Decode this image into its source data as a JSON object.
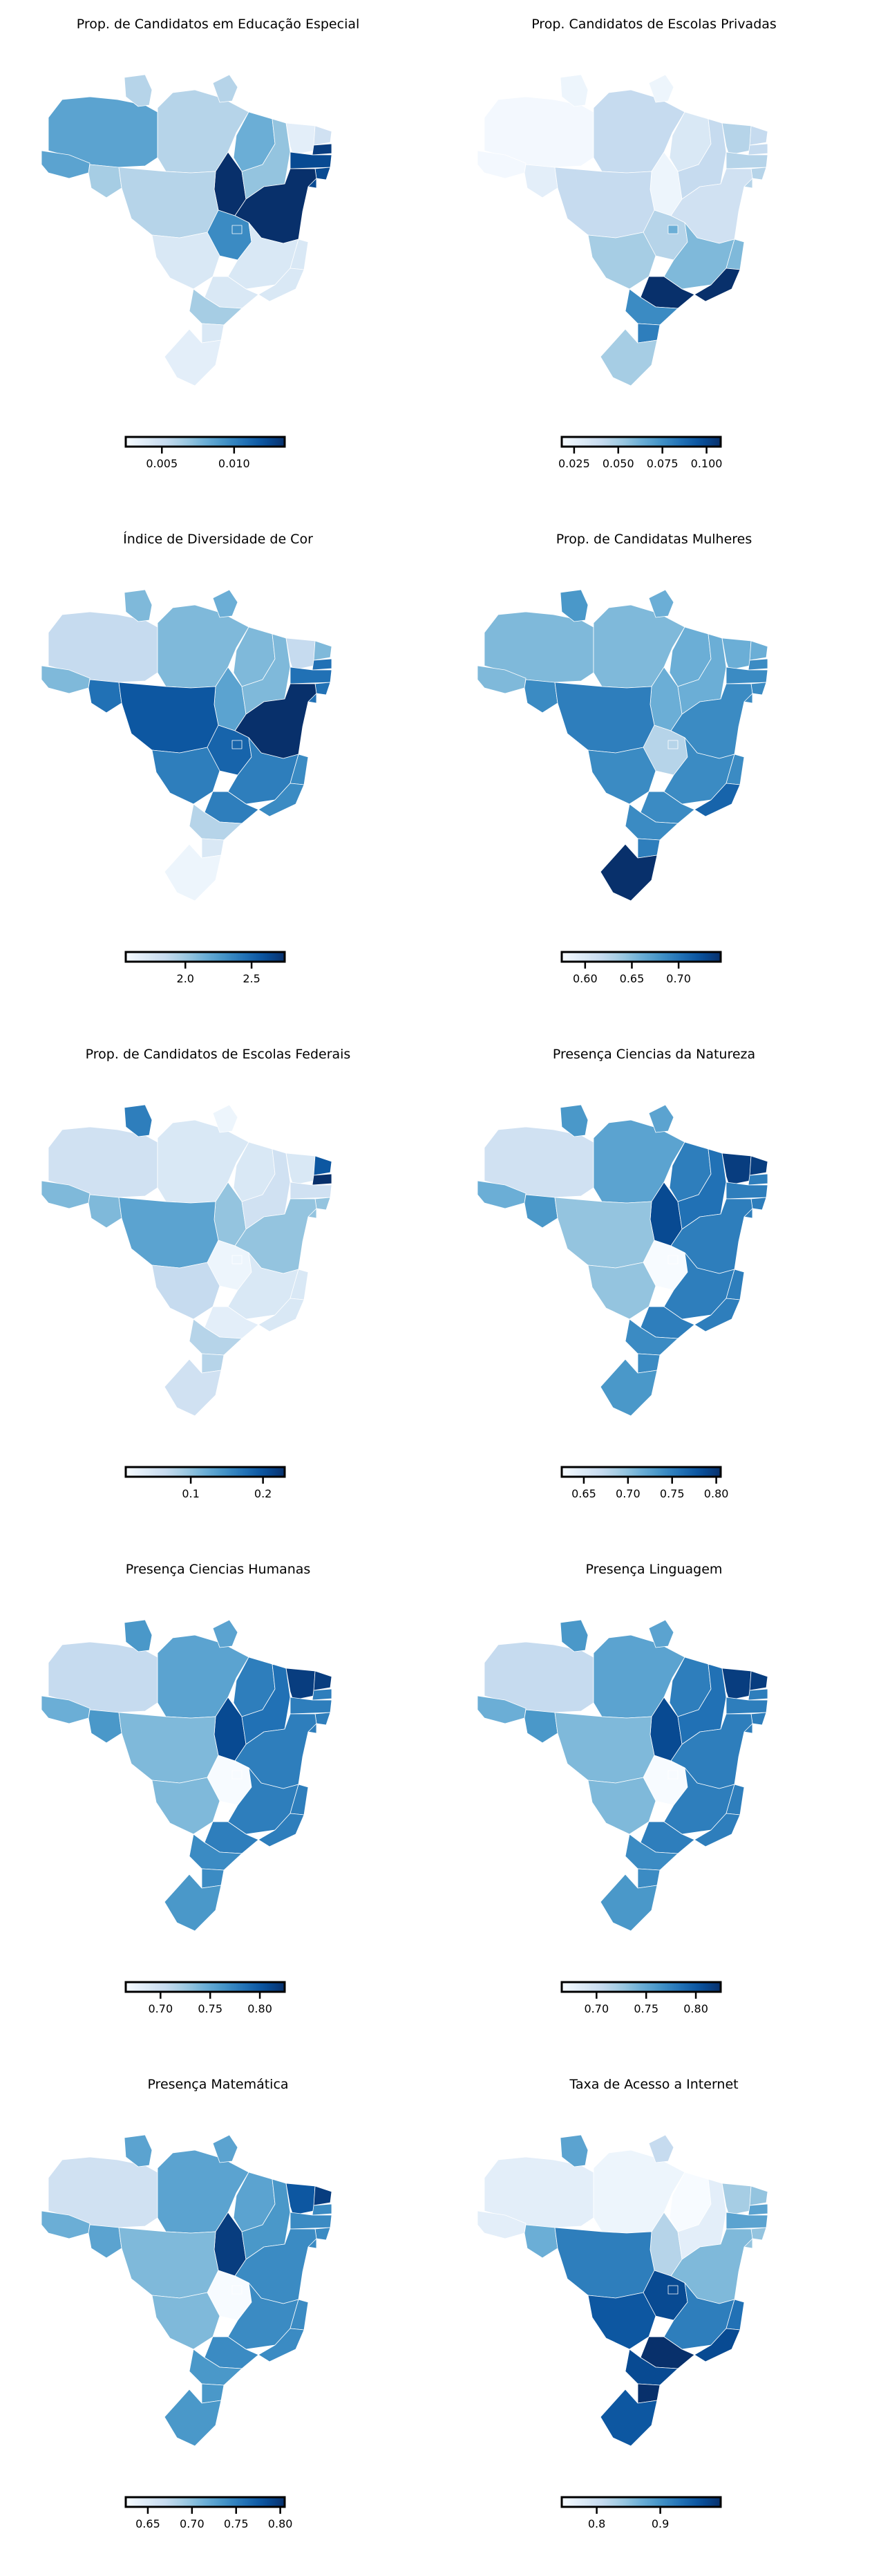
{
  "colormap": [
    "#f7fbff",
    "#deebf7",
    "#c6dbef",
    "#9ecae1",
    "#6baed6",
    "#4292c6",
    "#2171b5",
    "#08519c",
    "#08306b"
  ],
  "chart_data": [
    {
      "type": "choropleth",
      "title": "Prop. de Candidatos em Educação Especial",
      "colorbar": {
        "min": 0.0025,
        "max": 0.0135,
        "ticks": [
          0.005,
          0.01
        ],
        "tick_labels": [
          "0.005",
          "0.010"
        ]
      },
      "levels": {
        "AM": 0.55,
        "AC": 0.55,
        "RO": 0.35,
        "RR": 0.3,
        "PA": 0.3,
        "AP": 0.3,
        "TO": 1.0,
        "MA": 0.5,
        "PI": 0.4,
        "CE": 0.1,
        "RN": 0.2,
        "PB": 0.95,
        "PE": 0.9,
        "AL": 0.9,
        "SE": 0.9,
        "BA": 1.0,
        "MT": 0.3,
        "MS": 0.15,
        "GO": 0.65,
        "DF": 0.65,
        "MG": 0.15,
        "ES": 0.15,
        "RJ": 0.15,
        "SP": 0.15,
        "PR": 0.35,
        "SC": 0.15,
        "RS": 0.1
      }
    },
    {
      "type": "choropleth",
      "title": "Prop. Candidatos de Escolas Privadas",
      "colorbar": {
        "min": 0.018,
        "max": 0.108,
        "ticks": [
          0.025,
          0.05,
          0.075,
          0.1
        ],
        "tick_labels": [
          "0.025",
          "0.050",
          "0.075",
          "0.100"
        ]
      },
      "levels": {
        "AM": 0.02,
        "AC": 0.02,
        "RO": 0.1,
        "RR": 0.05,
        "PA": 0.25,
        "AP": 0.05,
        "TO": 0.05,
        "MA": 0.15,
        "PI": 0.25,
        "CE": 0.3,
        "RN": 0.25,
        "PB": 0.25,
        "PE": 0.3,
        "AL": 0.3,
        "SE": 0.3,
        "BA": 0.2,
        "MT": 0.25,
        "MS": 0.35,
        "GO": 0.3,
        "DF": 0.5,
        "MG": 0.45,
        "ES": 0.45,
        "RJ": 1.0,
        "SP": 1.0,
        "PR": 0.65,
        "SC": 0.7,
        "RS": 0.35
      }
    },
    {
      "type": "choropleth",
      "title": "Índice de Diversidade de Cor",
      "colorbar": {
        "min": 1.55,
        "max": 2.75,
        "ticks": [
          2.0,
          2.5
        ],
        "tick_labels": [
          "2.0",
          "2.5"
        ]
      },
      "levels": {
        "AM": 0.25,
        "AC": 0.45,
        "RO": 0.75,
        "RR": 0.45,
        "PA": 0.45,
        "AP": 0.5,
        "TO": 0.55,
        "MA": 0.45,
        "PI": 0.45,
        "CE": 0.25,
        "RN": 0.45,
        "PB": 0.75,
        "PE": 0.75,
        "AL": 0.75,
        "SE": 0.75,
        "BA": 1.0,
        "MT": 0.85,
        "MS": 0.7,
        "GO": 0.8,
        "DF": 0.8,
        "MG": 0.7,
        "ES": 0.65,
        "RJ": 0.65,
        "SP": 0.7,
        "PR": 0.3,
        "SC": 0.15,
        "RS": 0.05
      }
    },
    {
      "type": "choropleth",
      "title": "Prop. de Candidatas Mulheres",
      "colorbar": {
        "min": 0.575,
        "max": 0.745,
        "ticks": [
          0.6,
          0.65,
          0.7
        ],
        "tick_labels": [
          "0.60",
          "0.65",
          "0.70"
        ]
      },
      "levels": {
        "AM": 0.45,
        "AC": 0.45,
        "RO": 0.65,
        "RR": 0.6,
        "PA": 0.45,
        "AP": 0.5,
        "TO": 0.5,
        "MA": 0.5,
        "PI": 0.5,
        "CE": 0.5,
        "RN": 0.5,
        "PB": 0.65,
        "PE": 0.65,
        "AL": 0.65,
        "SE": 0.65,
        "BA": 0.65,
        "MT": 0.7,
        "MS": 0.65,
        "GO": 0.3,
        "DF": 0.3,
        "MG": 0.65,
        "ES": 0.65,
        "RJ": 0.8,
        "SP": 0.65,
        "PR": 0.65,
        "SC": 0.7,
        "RS": 1.0
      }
    },
    {
      "type": "choropleth",
      "title": "Prop. de Candidatos de Escolas Federais",
      "colorbar": {
        "min": 0.01,
        "max": 0.23,
        "ticks": [
          0.1,
          0.2
        ],
        "tick_labels": [
          "0.1",
          "0.2"
        ]
      },
      "levels": {
        "AM": 0.2,
        "AC": 0.45,
        "RO": 0.45,
        "RR": 0.7,
        "PA": 0.15,
        "AP": 0.05,
        "TO": 0.4,
        "MA": 0.15,
        "PI": 0.2,
        "CE": 0.15,
        "RN": 0.85,
        "PB": 1.0,
        "PE": 0.2,
        "AL": 0.4,
        "SE": 0.4,
        "BA": 0.4,
        "MT": 0.55,
        "MS": 0.25,
        "GO": 0.05,
        "DF": 0.05,
        "MG": 0.15,
        "ES": 0.15,
        "RJ": 0.15,
        "SP": 0.1,
        "PR": 0.3,
        "SC": 0.3,
        "RS": 0.2
      }
    },
    {
      "type": "choropleth",
      "title": "Presença Ciencias da Natureza",
      "colorbar": {
        "min": 0.625,
        "max": 0.805,
        "ticks": [
          0.65,
          0.7,
          0.75,
          0.8
        ],
        "tick_labels": [
          "0.65",
          "0.70",
          "0.75",
          "0.80"
        ]
      },
      "levels": {
        "AM": 0.2,
        "AC": 0.5,
        "RO": 0.6,
        "RR": 0.6,
        "PA": 0.55,
        "AP": 0.55,
        "TO": 0.9,
        "MA": 0.7,
        "PI": 0.75,
        "CE": 0.95,
        "RN": 0.95,
        "PB": 0.7,
        "PE": 0.7,
        "AL": 0.7,
        "SE": 0.7,
        "BA": 0.7,
        "MT": 0.4,
        "MS": 0.4,
        "GO": 0.0,
        "DF": 0.0,
        "MG": 0.7,
        "ES": 0.7,
        "RJ": 0.7,
        "SP": 0.7,
        "PR": 0.65,
        "SC": 0.65,
        "RS": 0.6
      }
    },
    {
      "type": "choropleth",
      "title": "Presença Ciencias Humanas",
      "colorbar": {
        "min": 0.665,
        "max": 0.825,
        "ticks": [
          0.7,
          0.75,
          0.8
        ],
        "tick_labels": [
          "0.70",
          "0.75",
          "0.80"
        ]
      },
      "levels": {
        "AM": 0.25,
        "AC": 0.5,
        "RO": 0.6,
        "RR": 0.6,
        "PA": 0.55,
        "AP": 0.55,
        "TO": 0.9,
        "MA": 0.7,
        "PI": 0.75,
        "CE": 0.95,
        "RN": 0.95,
        "PB": 0.7,
        "PE": 0.7,
        "AL": 0.7,
        "SE": 0.7,
        "BA": 0.7,
        "MT": 0.45,
        "MS": 0.45,
        "GO": 0.0,
        "DF": 0.0,
        "MG": 0.7,
        "ES": 0.7,
        "RJ": 0.7,
        "SP": 0.7,
        "PR": 0.65,
        "SC": 0.65,
        "RS": 0.6
      }
    },
    {
      "type": "choropleth",
      "title": "Presença Linguagem",
      "colorbar": {
        "min": 0.665,
        "max": 0.825,
        "ticks": [
          0.7,
          0.75,
          0.8
        ],
        "tick_labels": [
          "0.70",
          "0.75",
          "0.80"
        ]
      },
      "levels": {
        "AM": 0.25,
        "AC": 0.5,
        "RO": 0.6,
        "RR": 0.6,
        "PA": 0.55,
        "AP": 0.55,
        "TO": 0.9,
        "MA": 0.7,
        "PI": 0.75,
        "CE": 0.95,
        "RN": 0.95,
        "PB": 0.7,
        "PE": 0.7,
        "AL": 0.7,
        "SE": 0.7,
        "BA": 0.7,
        "MT": 0.45,
        "MS": 0.45,
        "GO": 0.0,
        "DF": 0.0,
        "MG": 0.7,
        "ES": 0.7,
        "RJ": 0.7,
        "SP": 0.7,
        "PR": 0.65,
        "SC": 0.65,
        "RS": 0.6
      }
    },
    {
      "type": "choropleth",
      "title": "Presença Matemática",
      "colorbar": {
        "min": 0.625,
        "max": 0.805,
        "ticks": [
          0.65,
          0.7,
          0.75,
          0.8
        ],
        "tick_labels": [
          "0.65",
          "0.70",
          "0.75",
          "0.80"
        ]
      },
      "levels": {
        "AM": 0.2,
        "AC": 0.5,
        "RO": 0.55,
        "RR": 0.55,
        "PA": 0.55,
        "AP": 0.55,
        "TO": 0.95,
        "MA": 0.55,
        "PI": 0.6,
        "CE": 0.85,
        "RN": 0.95,
        "PB": 0.65,
        "PE": 0.65,
        "AL": 0.65,
        "SE": 0.65,
        "BA": 0.65,
        "MT": 0.45,
        "MS": 0.45,
        "GO": 0.0,
        "DF": 0.0,
        "MG": 0.65,
        "ES": 0.65,
        "RJ": 0.65,
        "SP": 0.65,
        "PR": 0.6,
        "SC": 0.6,
        "RS": 0.6
      }
    },
    {
      "type": "choropleth",
      "title": "Taxa de Acesso a Internet",
      "colorbar": {
        "min": 0.745,
        "max": 0.995,
        "ticks": [
          0.8,
          0.9
        ],
        "tick_labels": [
          "0.8",
          "0.9"
        ]
      },
      "levels": {
        "AM": 0.1,
        "AC": 0.1,
        "RO": 0.5,
        "RR": 0.55,
        "PA": 0.05,
        "AP": 0.25,
        "TO": 0.3,
        "MA": 0.0,
        "PI": 0.1,
        "CE": 0.35,
        "RN": 0.4,
        "PB": 0.55,
        "PE": 0.55,
        "AL": 0.4,
        "SE": 0.4,
        "BA": 0.45,
        "MT": 0.7,
        "MS": 0.85,
        "GO": 0.9,
        "DF": 0.9,
        "MG": 0.7,
        "ES": 0.75,
        "RJ": 0.9,
        "SP": 1.0,
        "PR": 0.9,
        "SC": 1.0,
        "RS": 0.85
      }
    }
  ]
}
